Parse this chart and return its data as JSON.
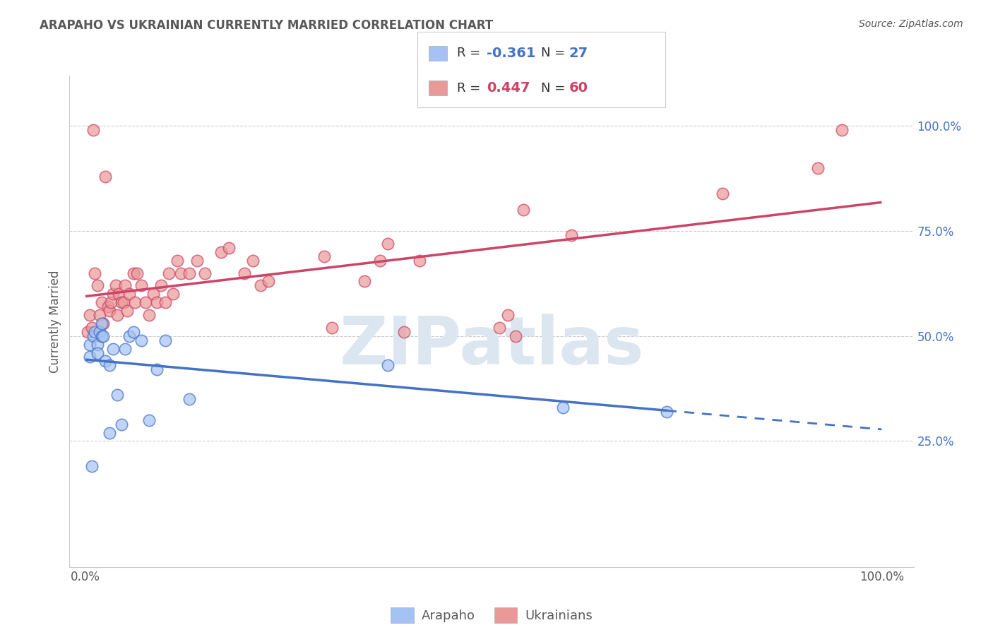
{
  "title": "ARAPAHO VS UKRAINIAN CURRENTLY MARRIED CORRELATION CHART",
  "source": "Source: ZipAtlas.com",
  "ylabel": "Currently Married",
  "legend_blue_label": "Arapaho",
  "legend_pink_label": "Ukrainians",
  "ytick_labels": [
    "25.0%",
    "50.0%",
    "75.0%",
    "100.0%"
  ],
  "ytick_values": [
    25,
    50,
    75,
    100
  ],
  "xtick_labels": [
    "0.0%",
    "100.0%"
  ],
  "xtick_values": [
    0,
    100
  ],
  "xlim": [
    -2,
    104
  ],
  "ylim": [
    -5,
    112
  ],
  "arapaho_x": [
    0.5,
    0.5,
    0.8,
    1.0,
    1.2,
    1.5,
    1.5,
    1.8,
    2.0,
    2.0,
    2.2,
    2.5,
    3.0,
    3.0,
    3.5,
    4.0,
    4.5,
    5.0,
    5.5,
    6.0,
    7.0,
    8.0,
    9.0,
    10.0,
    13.0,
    38.0,
    60.0,
    73.0
  ],
  "arapaho_y": [
    45,
    48,
    19,
    50,
    51,
    48,
    46,
    51,
    53,
    50,
    50,
    44,
    43,
    27,
    47,
    36,
    29,
    47,
    50,
    51,
    49,
    30,
    42,
    49,
    35,
    43,
    33,
    32
  ],
  "ukrainian_x": [
    0.3,
    0.5,
    0.8,
    1.0,
    1.2,
    1.5,
    1.8,
    2.0,
    2.2,
    2.5,
    2.8,
    3.0,
    3.2,
    3.5,
    3.8,
    4.0,
    4.2,
    4.5,
    4.8,
    5.0,
    5.2,
    5.5,
    6.0,
    6.2,
    6.5,
    7.0,
    7.5,
    8.0,
    8.5,
    9.0,
    9.5,
    10.0,
    10.5,
    11.0,
    11.5,
    12.0,
    13.0,
    14.0,
    15.0,
    17.0,
    18.0,
    20.0,
    21.0,
    22.0,
    23.0,
    30.0,
    31.0,
    35.0,
    37.0,
    38.0,
    40.0,
    42.0,
    52.0,
    53.0,
    54.0,
    55.0,
    61.0,
    80.0,
    92.0,
    95.0
  ],
  "ukrainian_y": [
    51,
    55,
    52,
    99,
    65,
    62,
    55,
    58,
    53,
    88,
    57,
    56,
    58,
    60,
    62,
    55,
    60,
    58,
    58,
    62,
    56,
    60,
    65,
    58,
    65,
    62,
    58,
    55,
    60,
    58,
    62,
    58,
    65,
    60,
    68,
    65,
    65,
    68,
    65,
    70,
    71,
    65,
    68,
    62,
    63,
    69,
    52,
    63,
    68,
    72,
    51,
    68,
    52,
    55,
    50,
    80,
    74,
    84,
    90,
    99
  ],
  "blue_scatter_color": "#a4c2f4",
  "pink_scatter_color": "#ea9999",
  "blue_line_color": "#4472c4",
  "pink_line_color": "#cc4466",
  "blue_edge_color": "#4472c4",
  "pink_edge_color": "#cc4466",
  "background_color": "#ffffff",
  "grid_color": "#cccccc",
  "watermark_text": "ZIPatlas",
  "watermark_color": "#dce6f1",
  "right_tick_color": "#4472c4",
  "title_color": "#595959",
  "source_color": "#595959",
  "axis_label_color": "#595959",
  "tick_color": "#595959"
}
